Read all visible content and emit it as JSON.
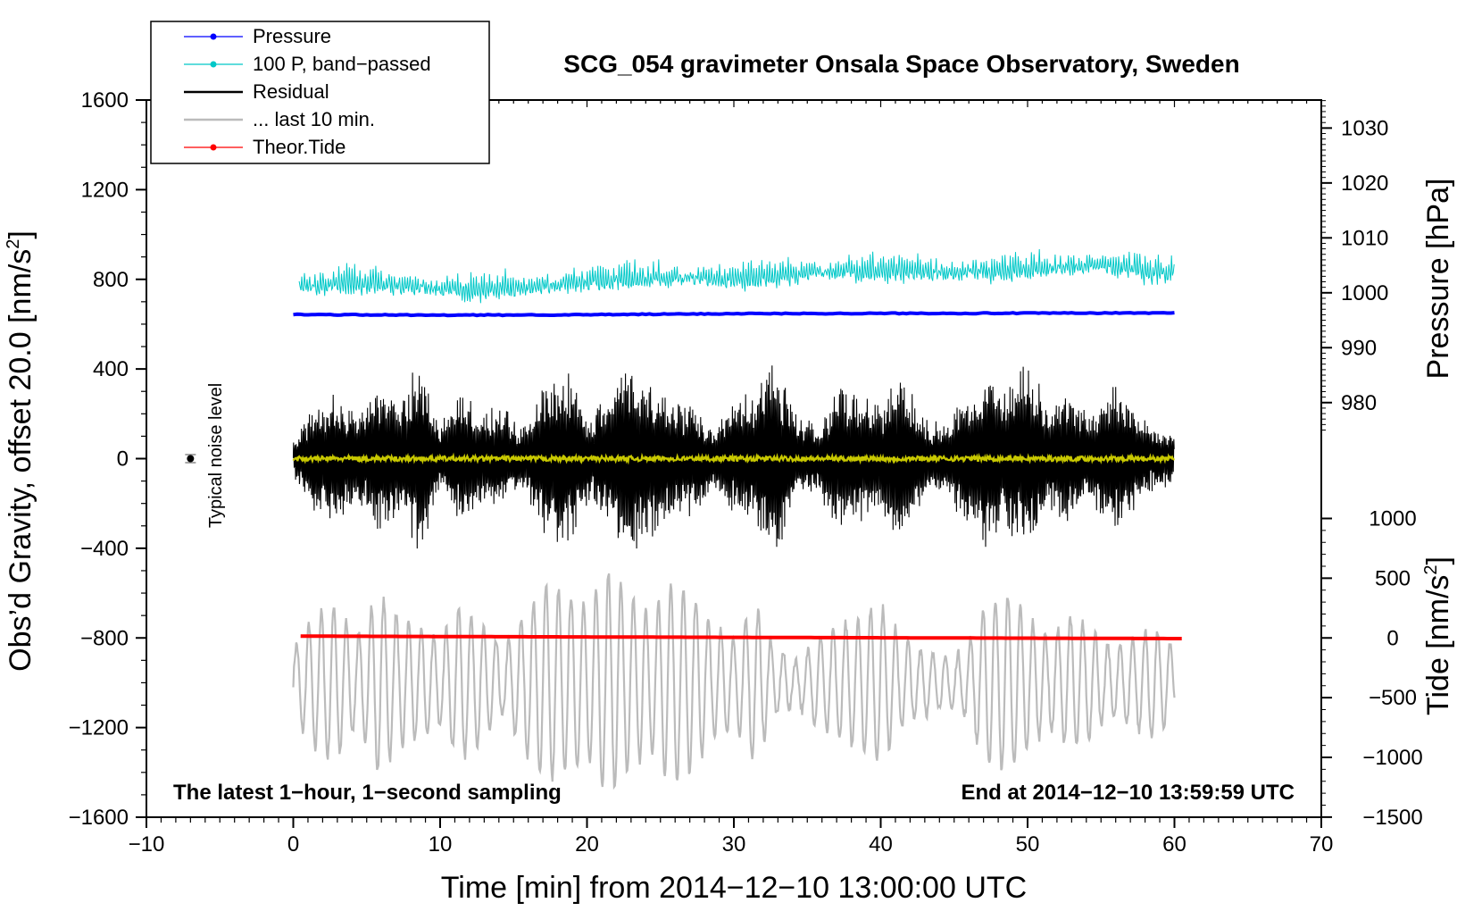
{
  "chart_data": {
    "type": "line",
    "title": "SCG_054 gravimeter Onsala Space Observatory, Sweden",
    "xlabel": "Time [min] from 2014−12−10 13:00:00 UTC",
    "ylabel": "Obs’d Gravity, offset 20.0 [nm/s",
    "ylabel_sup": "2",
    "ylabel_end": "]",
    "pressure_label": "Pressure [hPa]",
    "tide_label": "Tide [nm/s",
    "tide_sup": "2",
    "tide_end": "]",
    "note_left": "The latest 1−hour, 1−second sampling",
    "note_right": "End at 2014−12−10 13:59:59 UTC",
    "noise_label": "Typical noise level",
    "xlim": [
      -10,
      70
    ],
    "ylim": [
      -1600,
      1600
    ],
    "x_ticks": [
      -10,
      0,
      10,
      20,
      30,
      40,
      50,
      60,
      70
    ],
    "x_tick_labels": [
      "−10",
      "0",
      "10",
      "20",
      "30",
      "40",
      "50",
      "60",
      "70"
    ],
    "y_ticks": [
      -1600,
      -1200,
      -800,
      -400,
      0,
      400,
      800,
      1200,
      1600
    ],
    "y_tick_labels": [
      "−1600",
      "−1200",
      "−800",
      "−400",
      "0",
      "400",
      "800",
      "1200",
      "1600"
    ],
    "pressure_ticks": [
      980,
      990,
      1000,
      1010,
      1020,
      1030
    ],
    "pressure_scale": {
      "ref_hpa": 1000,
      "ref_gravity": 740,
      "gravity_per_hpa": 24.5
    },
    "tide_ticks": [
      -1500,
      -1000,
      -500,
      0,
      500,
      1000
    ],
    "tide_tick_labels": [
      "−1500",
      "−1000",
      "−500",
      "0",
      "500",
      "1000"
    ],
    "tide_scale": {
      "ref_tide": 0,
      "ref_gravity": -800,
      "gravity_per_unit": 0.533
    },
    "legend": [
      {
        "label": "Pressure",
        "color": "#0000ff",
        "marker": true
      },
      {
        "label": "100 P, band−passed",
        "color": "#00c8c8",
        "marker": true
      },
      {
        "label": "Residual",
        "color": "#000000",
        "marker": false
      },
      {
        "label": "... last 10 min.",
        "color": "#bbbbbb",
        "marker": false
      },
      {
        "label": "Theor.Tide",
        "color": "#ff0000",
        "marker": true
      }
    ],
    "series": [
      {
        "name": "Pressure",
        "color": "#0000ff",
        "x": [
          0,
          10,
          20,
          30,
          40,
          50,
          60
        ],
        "y": [
          643,
          640,
          642,
          647,
          648,
          649,
          650
        ]
      },
      {
        "name": "100 P, band−passed",
        "color": "#00c8c8",
        "x": [
          0,
          5,
          10,
          15,
          20,
          25,
          30,
          35,
          40,
          45,
          50,
          55,
          60
        ],
        "y": [
          770,
          790,
          755,
          760,
          790,
          810,
          800,
          830,
          840,
          830,
          850,
          860,
          830
        ]
      },
      {
        "name": "Residual",
        "color": "#000000",
        "x": [
          0,
          60
        ],
        "amplitude_envelope": [
          80,
          250,
          300,
          200,
          350,
          250,
          450,
          150,
          300,
          200,
          250,
          150,
          350,
          450,
          200,
          300,
          450,
          350,
          300,
          250,
          150,
          250,
          300,
          450,
          200,
          150,
          350,
          300,
          250,
          400,
          200,
          150,
          300,
          400,
          350,
          450,
          250,
          300,
          200,
          350,
          250,
          150,
          100
        ]
      },
      {
        "name": "... last 10 min.",
        "color": "#bbbbbb",
        "x": [
          0,
          60
        ],
        "center": -1000,
        "amplitude_envelope": [
          150,
          300,
          350,
          200,
          400,
          300,
          250,
          200,
          350,
          250,
          150,
          300,
          450,
          400,
          350,
          500,
          400,
          300,
          450,
          400,
          250,
          200,
          350,
          150,
          100,
          200,
          250,
          300,
          350,
          200,
          150,
          100,
          150,
          350,
          400,
          300,
          200,
          300,
          250,
          150,
          200,
          250,
          150
        ]
      },
      {
        "name": "Theor.Tide",
        "color": "#ff0000",
        "x": [
          0.5,
          60.5
        ],
        "y": [
          -792,
          -803
        ]
      },
      {
        "name": "Smoothed residual",
        "color": "#c8c800",
        "x": [
          0,
          60
        ],
        "y": [
          0,
          0
        ]
      }
    ],
    "noise_point": {
      "x": -7,
      "y": 0,
      "err": 18
    }
  }
}
